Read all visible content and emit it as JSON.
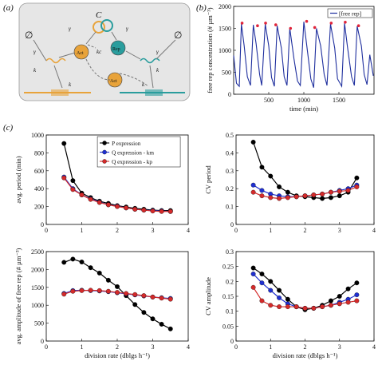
{
  "panels": [
    {
      "id": "a",
      "label": "(a)"
    },
    {
      "id": "b",
      "label": "(b)"
    },
    {
      "id": "c",
      "label": "(c)"
    }
  ],
  "diagram": {
    "complex_label": "C",
    "act_label": "Act",
    "rep_label": "Rep",
    "kc_label": "kc",
    "gamma_label": "γ",
    "k_label": "k",
    "empty_set": "∅",
    "colors": {
      "activator": "#e8a33a",
      "repressor": "#2a9d9d",
      "box": "#e6e6e6",
      "arrow": "#888888"
    }
  },
  "chart_data": [
    {
      "type": "line",
      "panel": "b",
      "ylabel": "free rep concentration (# µm⁻³)",
      "xlabel": "time (min)",
      "xlim": [
        0,
        2000
      ],
      "ylim": [
        0,
        2000
      ],
      "xticks": [
        500,
        1000,
        1500
      ],
      "yticks": [
        0,
        500,
        1000,
        1500,
        2000
      ],
      "legend": "[free rep]",
      "legend_position": "top-right",
      "colors": {
        "line": "#1f2f9e",
        "peak": "#e0243a"
      },
      "series": [
        {
          "name": "[free rep]",
          "x": [
            0,
            40,
            80,
            110,
            150,
            195,
            240,
            280,
            320,
            370,
            400,
            450,
            500,
            540,
            580,
            620,
            680,
            720,
            760,
            800,
            860,
            910,
            950,
            1000,
            1050,
            1100,
            1140,
            1180,
            1240,
            1290,
            1330,
            1380,
            1440,
            1480,
            1540,
            1580,
            1620,
            1680,
            1720,
            1760,
            1820,
            1860,
            1900,
            1940,
            1990
          ],
          "values": [
            880,
            250,
            180,
            1600,
            1100,
            400,
            200,
            1580,
            1150,
            450,
            200,
            1600,
            1100,
            380,
            180,
            1560,
            1050,
            400,
            200,
            1500,
            800,
            300,
            200,
            1650,
            1000,
            350,
            150,
            1500,
            1100,
            450,
            200,
            1600,
            1050,
            350,
            180,
            1620,
            1100,
            400,
            200,
            1550,
            1100,
            450,
            220,
            900,
            420
          ]
        },
        {
          "name": "peaks",
          "x": [
            120,
            340,
            455,
            600,
            810,
            1040,
            1155,
            1390,
            1590,
            1780
          ],
          "values": [
            1620,
            1560,
            1620,
            1580,
            1500,
            1660,
            1520,
            1620,
            1640,
            1560
          ]
        }
      ]
    },
    {
      "type": "line",
      "panel": "c1",
      "ylabel": "avg. period (min)",
      "xlabel": "",
      "xlim": [
        0,
        4
      ],
      "ylim": [
        0,
        1000
      ],
      "xticks": [
        0,
        1,
        2,
        3,
        4
      ],
      "yticks": [
        0,
        200,
        400,
        600,
        800,
        1000
      ],
      "legend_position": "top-right",
      "series": [
        {
          "name": "P expression",
          "color": "#000000",
          "x": [
            0.5,
            0.75,
            1.0,
            1.25,
            1.5,
            1.75,
            2.0,
            2.25,
            2.5,
            2.75,
            3.0,
            3.25,
            3.5
          ],
          "values": [
            905,
            490,
            350,
            300,
            260,
            235,
            210,
            195,
            180,
            170,
            160,
            155,
            155
          ]
        },
        {
          "name": "Q expression - km",
          "color": "#1f2fd0",
          "x": [
            0.5,
            0.75,
            1.0,
            1.25,
            1.5,
            1.75,
            2.0,
            2.25,
            2.5,
            2.75,
            3.0,
            3.25,
            3.5
          ],
          "values": [
            530,
            400,
            330,
            285,
            250,
            220,
            205,
            185,
            170,
            160,
            155,
            150,
            145
          ]
        },
        {
          "name": "Q expression - kp",
          "color": "#d42a2a",
          "x": [
            0.5,
            0.75,
            1.0,
            1.25,
            1.5,
            1.75,
            2.0,
            2.25,
            2.5,
            2.75,
            3.0,
            3.25,
            3.5
          ],
          "values": [
            520,
            390,
            330,
            280,
            245,
            220,
            200,
            185,
            170,
            160,
            150,
            145,
            145
          ]
        }
      ]
    },
    {
      "type": "line",
      "panel": "c2",
      "ylabel": "CV period",
      "xlabel": "",
      "xlim": [
        0,
        4
      ],
      "ylim": [
        0,
        0.5
      ],
      "xticks": [
        0,
        1,
        2,
        3,
        4
      ],
      "yticks": [
        0,
        0.1,
        0.2,
        0.3,
        0.4,
        0.5
      ],
      "series": [
        {
          "name": "P expression",
          "color": "#000000",
          "x": [
            0.5,
            0.75,
            1.0,
            1.25,
            1.5,
            1.75,
            2.0,
            2.25,
            2.5,
            2.75,
            3.0,
            3.25,
            3.5
          ],
          "values": [
            0.46,
            0.32,
            0.27,
            0.21,
            0.18,
            0.16,
            0.155,
            0.15,
            0.145,
            0.15,
            0.16,
            0.18,
            0.26
          ]
        },
        {
          "name": "Q expression - km",
          "color": "#1f2fd0",
          "x": [
            0.5,
            0.75,
            1.0,
            1.25,
            1.5,
            1.75,
            2.0,
            2.25,
            2.5,
            2.75,
            3.0,
            3.25,
            3.5
          ],
          "values": [
            0.22,
            0.19,
            0.17,
            0.16,
            0.155,
            0.155,
            0.16,
            0.165,
            0.17,
            0.18,
            0.19,
            0.2,
            0.22
          ]
        },
        {
          "name": "Q expression - kp",
          "color": "#d42a2a",
          "x": [
            0.5,
            0.75,
            1.0,
            1.25,
            1.5,
            1.75,
            2.0,
            2.25,
            2.5,
            2.75,
            3.0,
            3.25,
            3.5
          ],
          "values": [
            0.18,
            0.16,
            0.15,
            0.145,
            0.15,
            0.155,
            0.16,
            0.165,
            0.17,
            0.18,
            0.185,
            0.19,
            0.21
          ]
        }
      ]
    },
    {
      "type": "line",
      "panel": "c3",
      "ylabel": "avg. amplitude of free rep (# µm⁻³)",
      "xlabel": "division rate (dblgs h⁻¹)",
      "xlim": [
        0,
        4
      ],
      "ylim": [
        0,
        2500
      ],
      "xticks": [
        0,
        1,
        2,
        3,
        4
      ],
      "yticks": [
        0,
        500,
        1000,
        1500,
        2000,
        2500
      ],
      "series": [
        {
          "name": "P expression",
          "color": "#000000",
          "x": [
            0.5,
            0.75,
            1.0,
            1.25,
            1.5,
            1.75,
            2.0,
            2.25,
            2.5,
            2.75,
            3.0,
            3.25,
            3.5
          ],
          "values": [
            2200,
            2290,
            2210,
            2050,
            1900,
            1700,
            1520,
            1270,
            1020,
            800,
            620,
            470,
            340
          ]
        },
        {
          "name": "Q expression - km",
          "color": "#1f2fd0",
          "x": [
            0.5,
            0.75,
            1.0,
            1.25,
            1.5,
            1.75,
            2.0,
            2.25,
            2.5,
            2.75,
            3.0,
            3.25,
            3.5
          ],
          "values": [
            1330,
            1410,
            1420,
            1410,
            1400,
            1380,
            1350,
            1320,
            1290,
            1260,
            1230,
            1210,
            1190
          ]
        },
        {
          "name": "Q expression - kp",
          "color": "#d42a2a",
          "x": [
            0.5,
            0.75,
            1.0,
            1.25,
            1.5,
            1.75,
            2.0,
            2.25,
            2.5,
            2.75,
            3.0,
            3.25,
            3.5
          ],
          "values": [
            1310,
            1390,
            1410,
            1420,
            1410,
            1390,
            1360,
            1330,
            1300,
            1270,
            1230,
            1200,
            1170
          ]
        }
      ]
    },
    {
      "type": "line",
      "panel": "c4",
      "ylabel": "CV amplitude",
      "xlabel": "division rate (dblgs h⁻¹)",
      "xlim": [
        0,
        4
      ],
      "ylim": [
        0,
        0.3
      ],
      "xticks": [
        0,
        1,
        2,
        3,
        4
      ],
      "yticks": [
        0,
        0.05,
        0.1,
        0.15,
        0.2,
        0.25,
        0.3
      ],
      "series": [
        {
          "name": "P expression",
          "color": "#000000",
          "x": [
            0.5,
            0.75,
            1.0,
            1.25,
            1.5,
            1.75,
            2.0,
            2.25,
            2.5,
            2.75,
            3.0,
            3.25,
            3.5
          ],
          "values": [
            0.245,
            0.225,
            0.2,
            0.17,
            0.14,
            0.115,
            0.105,
            0.11,
            0.12,
            0.135,
            0.15,
            0.175,
            0.195
          ]
        },
        {
          "name": "Q expression - km",
          "color": "#1f2fd0",
          "x": [
            0.5,
            0.75,
            1.0,
            1.25,
            1.5,
            1.75,
            2.0,
            2.25,
            2.5,
            2.75,
            3.0,
            3.25,
            3.5
          ],
          "values": [
            0.225,
            0.195,
            0.17,
            0.145,
            0.125,
            0.115,
            0.11,
            0.11,
            0.115,
            0.12,
            0.13,
            0.14,
            0.155
          ]
        },
        {
          "name": "Q expression - kp",
          "color": "#d42a2a",
          "x": [
            0.5,
            0.75,
            1.0,
            1.25,
            1.5,
            1.75,
            2.0,
            2.25,
            2.5,
            2.75,
            3.0,
            3.25,
            3.5
          ],
          "values": [
            0.18,
            0.135,
            0.12,
            0.115,
            0.115,
            0.115,
            0.11,
            0.11,
            0.115,
            0.12,
            0.125,
            0.13,
            0.135
          ]
        }
      ]
    }
  ]
}
